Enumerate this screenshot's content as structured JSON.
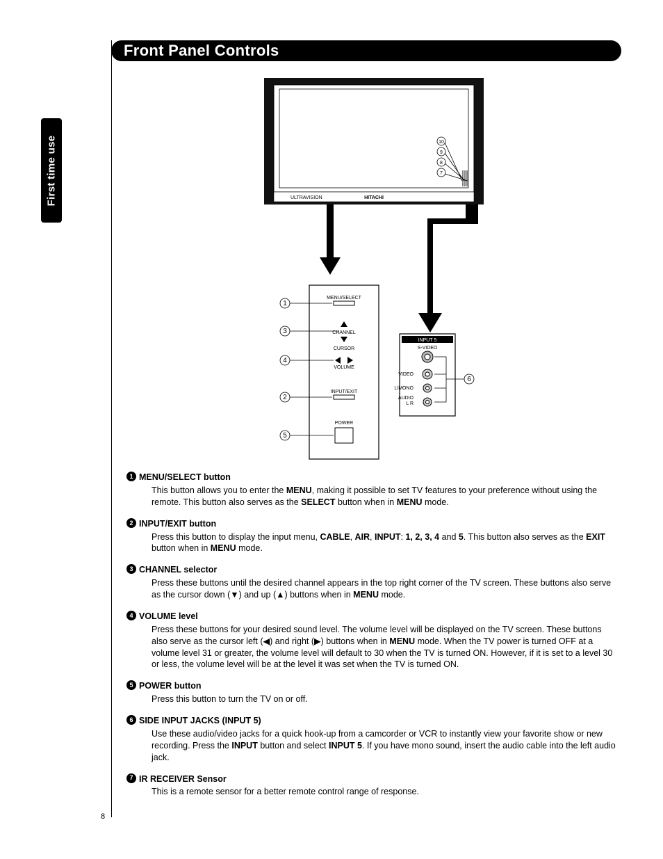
{
  "colors": {
    "black": "#000000",
    "white": "#ffffff"
  },
  "header": {
    "title": "Front Panel Controls"
  },
  "side_tab": {
    "label": "First time use"
  },
  "page_number": "8",
  "tv": {
    "brand": "HITACHI",
    "sub_brand": "ULTRAVISION",
    "indicator_numbers": [
      "10",
      "9",
      "8",
      "7"
    ]
  },
  "control_panel": {
    "items": [
      {
        "num": "1",
        "label": "MENU/SELECT"
      },
      {
        "num": "3",
        "label_top": "CHANNEL",
        "label_mid": "CURSOR"
      },
      {
        "num": "4",
        "label_top": "VOLUME"
      },
      {
        "num": "2",
        "label": "INPUT/EXIT"
      },
      {
        "num": "5",
        "label": "POWER"
      }
    ]
  },
  "input_panel": {
    "title": "INPUT 5",
    "jacks": [
      {
        "label": "S-VIDEO"
      },
      {
        "label": "VIDEO"
      },
      {
        "label": "L/MONO"
      },
      {
        "label": "AUDIO",
        "sub": "L R"
      }
    ],
    "callout_num": "6"
  },
  "descriptions": [
    {
      "num": "1",
      "title": "MENU/SELECT button",
      "body": "This button allows you to enter the <b>MENU</b>, making it possible to set TV features to your preference without using the remote. This button also serves as the <b>SELECT</b> button when in <b>MENU</b> mode."
    },
    {
      "num": "2",
      "title": "INPUT/EXIT button",
      "body": "Press this button to display the input menu, <b>CABLE</b>, <b>AIR</b>, <b>INPUT</b>: <b>1, 2, 3, 4</b> and <b>5</b>. This button also serves as the <b>EXIT</b> button when in <b>MENU</b> mode."
    },
    {
      "num": "3",
      "title": "CHANNEL selector",
      "body": "Press these buttons until the desired channel appears in the top right corner of the TV screen. These buttons also serve as the cursor down (▼) and up (▲) buttons when in <b>MENU</b> mode."
    },
    {
      "num": "4",
      "title": "VOLUME level",
      "body": "Press these buttons for your desired sound level. The volume level will be displayed on the TV screen. These buttons also serve as the cursor left (◀) and right (▶) buttons when in <b>MENU</b> mode. When the TV power is turned OFF at a volume level 31 or greater, the volume level will default to 30 when the TV is turned ON. However, if it is set to a level 30 or less, the volume level will be at the level it was set when the TV is turned ON."
    },
    {
      "num": "5",
      "title": "POWER button",
      "body": "Press this button to turn the TV on or off."
    },
    {
      "num": "6",
      "title": "SIDE INPUT JACKS (INPUT 5)",
      "body": "Use these audio/video jacks for a quick hook-up from a camcorder or VCR to instantly view your favorite show or new recording. Press the <b>INPUT</b> button and select <b>INPUT 5</b>. If you have mono sound, insert the audio cable into the left audio jack."
    },
    {
      "num": "7",
      "title": "IR RECEIVER Sensor",
      "body": "This is a remote sensor for a better remote control range of response."
    }
  ]
}
